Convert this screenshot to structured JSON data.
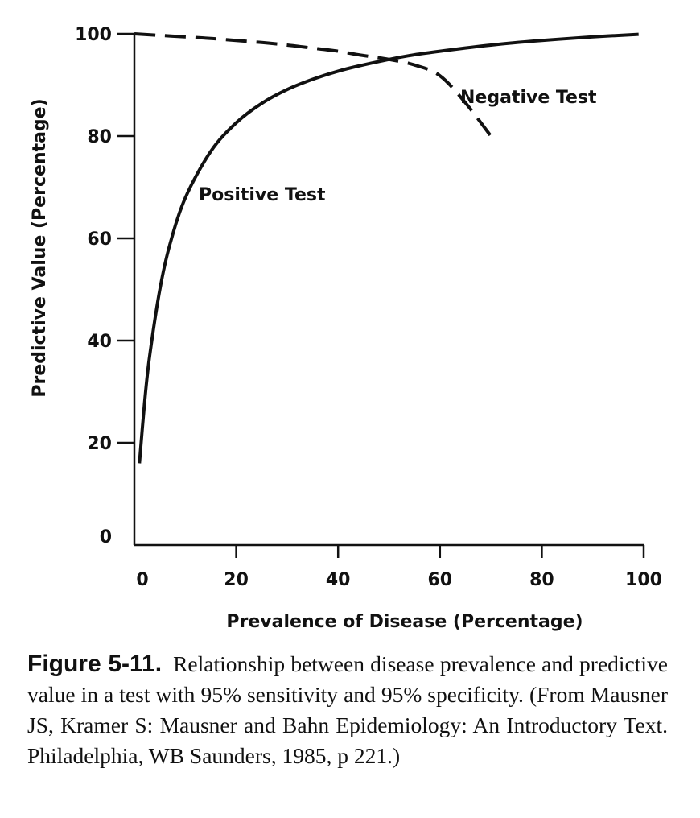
{
  "chart_data": {
    "type": "line",
    "title": "",
    "xlabel": "Prevalence of Disease (Percentage)",
    "ylabel": "Predictive Value (Percentage)",
    "xlim": [
      0,
      100
    ],
    "ylim": [
      0,
      100
    ],
    "xticks": [
      "0",
      "20",
      "40",
      "60",
      "80",
      "100"
    ],
    "yticks": [
      "0",
      "20",
      "40",
      "60",
      "80",
      "100"
    ],
    "series": [
      {
        "name": "Positive Test",
        "style": "solid",
        "x": [
          1,
          2,
          3,
          5,
          7,
          10,
          15,
          20,
          25,
          30,
          35,
          40,
          44,
          50,
          55,
          60,
          70,
          80,
          90,
          99
        ],
        "y": [
          16,
          27.9,
          37,
          50,
          58.9,
          67.9,
          77,
          82.6,
          86.4,
          89.1,
          91.1,
          92.7,
          93.7,
          95,
          95.9,
          96.6,
          97.8,
          98.7,
          99.4,
          99.9
        ]
      },
      {
        "name": "Negative Test",
        "style": "dashed",
        "x": [
          0,
          5,
          10,
          15,
          20,
          25,
          30,
          35,
          40,
          44,
          50,
          55,
          60,
          65,
          70
        ],
        "y": [
          100,
          99.7,
          99.4,
          99.1,
          98.7,
          98.3,
          97.8,
          97.2,
          96.6,
          95.9,
          95,
          93.9,
          91.8,
          86.5,
          80
        ]
      }
    ]
  },
  "caption": {
    "label": "Figure 5-11.",
    "text": "Relationship between disease prevalence and predictive value in a test with 95% sensitivity and 95% specificity. (From Mausner JS, Kramer S: Mausner and Bahn Epidemiology: An Introductory Text. Philadelphia, WB Saunders, 1985, p 221.)"
  }
}
